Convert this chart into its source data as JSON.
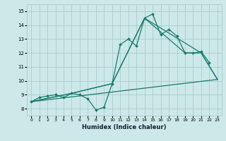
{
  "xlabel": "Humidex (Indice chaleur)",
  "background_color": "#cce8e8",
  "grid_color": "#aacccc",
  "line_color": "#1a7a6e",
  "xlim": [
    -0.5,
    23.5
  ],
  "ylim": [
    7.5,
    15.5
  ],
  "xticks": [
    0,
    1,
    2,
    3,
    4,
    5,
    6,
    7,
    8,
    9,
    10,
    11,
    12,
    13,
    14,
    15,
    16,
    17,
    18,
    19,
    20,
    21,
    22,
    23
  ],
  "yticks": [
    8,
    9,
    10,
    11,
    12,
    13,
    14,
    15
  ],
  "lines": [
    {
      "x": [
        0,
        1,
        2,
        3,
        4,
        5,
        6,
        7,
        8,
        9,
        10,
        11,
        12,
        13,
        14,
        15,
        16,
        17,
        18,
        19,
        20,
        21,
        22
      ],
      "y": [
        8.5,
        8.8,
        8.9,
        9.0,
        8.8,
        9.1,
        9.0,
        8.7,
        7.9,
        8.1,
        9.8,
        12.6,
        13.0,
        12.5,
        14.5,
        14.8,
        13.3,
        13.7,
        13.2,
        12.0,
        12.0,
        12.1,
        11.3
      ],
      "marker": true
    },
    {
      "x": [
        0,
        5,
        10,
        14,
        19,
        21,
        23
      ],
      "y": [
        8.5,
        9.1,
        9.8,
        14.5,
        12.0,
        12.0,
        10.1
      ],
      "marker": false
    },
    {
      "x": [
        0,
        5,
        10,
        14,
        21,
        23
      ],
      "y": [
        8.5,
        9.1,
        9.8,
        14.5,
        12.0,
        10.1
      ],
      "marker": false
    },
    {
      "x": [
        0,
        23
      ],
      "y": [
        8.5,
        10.1
      ],
      "marker": false
    }
  ]
}
